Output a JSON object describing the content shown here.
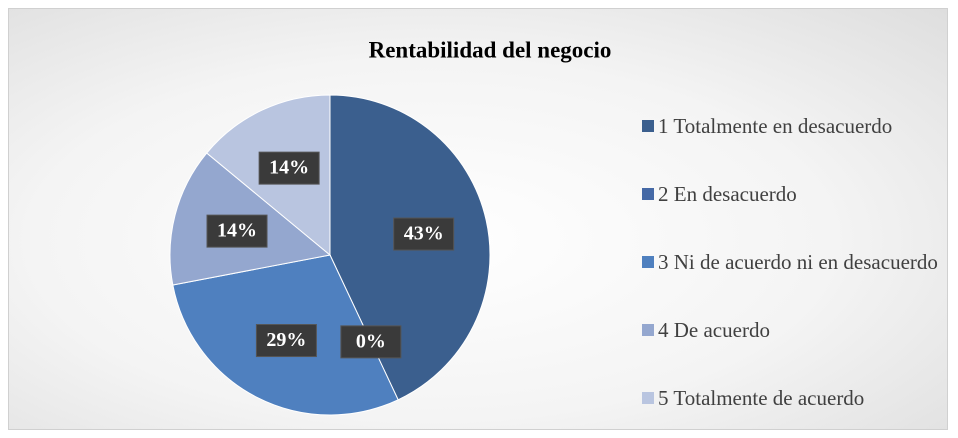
{
  "chart_data": {
    "type": "pie",
    "title": "Rentabilidad del negocio",
    "categories": [
      "1 Totalmente en desacuerdo",
      "2 En desacuerdo",
      "3 Ni de acuerdo ni en desacuerdo",
      "4 De acuerdo",
      "5 Totalmente de acuerdo"
    ],
    "values": [
      43,
      0,
      29,
      14,
      14
    ],
    "value_labels": [
      "43%",
      "0%",
      "29%",
      "14%",
      "14%"
    ],
    "colors": [
      "#3b5f8e",
      "#4569a6",
      "#4f80bf",
      "#94a7cf",
      "#b9c5e0"
    ],
    "legend": "right"
  }
}
